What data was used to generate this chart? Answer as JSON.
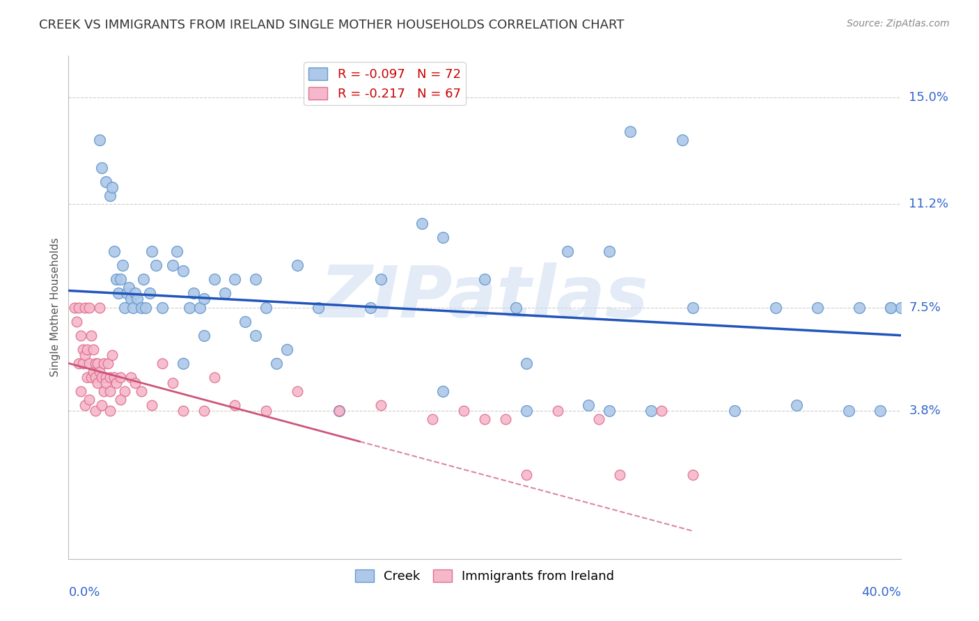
{
  "title": "CREEK VS IMMIGRANTS FROM IRELAND SINGLE MOTHER HOUSEHOLDS CORRELATION CHART",
  "source": "Source: ZipAtlas.com",
  "ylabel": "Single Mother Households",
  "ytick_labels": [
    "3.8%",
    "7.5%",
    "11.2%",
    "15.0%"
  ],
  "ytick_values": [
    3.8,
    7.5,
    11.2,
    15.0
  ],
  "xlim": [
    0.0,
    40.0
  ],
  "ylim": [
    -1.5,
    16.5
  ],
  "creek_R": -0.097,
  "creek_N": 72,
  "ireland_R": -0.217,
  "ireland_N": 67,
  "creek_color": "#adc8e8",
  "creek_edge_color": "#6699cc",
  "ireland_color": "#f5b8cb",
  "ireland_edge_color": "#e07090",
  "creek_line_color": "#2255bb",
  "ireland_line_color": "#cc5577",
  "watermark": "ZIPatlas",
  "watermark_color": "#d0dff0",
  "creek_x": [
    1.5,
    1.6,
    1.8,
    2.0,
    2.1,
    2.2,
    2.3,
    2.4,
    2.5,
    2.6,
    2.7,
    2.8,
    2.9,
    3.0,
    3.1,
    3.2,
    3.3,
    3.5,
    3.6,
    3.7,
    3.9,
    4.0,
    4.2,
    4.5,
    5.0,
    5.2,
    5.5,
    5.8,
    6.0,
    6.3,
    6.5,
    7.0,
    7.5,
    8.0,
    8.5,
    9.0,
    9.5,
    10.0,
    11.0,
    12.0,
    13.0,
    14.5,
    15.0,
    17.0,
    18.0,
    20.0,
    21.5,
    22.0,
    24.0,
    25.0,
    26.0,
    27.0,
    28.0,
    29.5,
    30.0,
    32.0,
    34.0,
    35.0,
    36.0,
    37.5,
    38.0,
    39.0,
    39.5,
    40.0,
    5.5,
    6.5,
    9.0,
    10.5,
    18.0,
    22.0,
    26.0,
    39.5
  ],
  "creek_y": [
    13.5,
    12.5,
    12.0,
    11.5,
    11.8,
    9.5,
    8.5,
    8.0,
    8.5,
    9.0,
    7.5,
    8.0,
    8.2,
    7.8,
    7.5,
    8.0,
    7.8,
    7.5,
    8.5,
    7.5,
    8.0,
    9.5,
    9.0,
    7.5,
    9.0,
    9.5,
    8.8,
    7.5,
    8.0,
    7.5,
    7.8,
    8.5,
    8.0,
    8.5,
    7.0,
    6.5,
    7.5,
    5.5,
    9.0,
    7.5,
    3.8,
    7.5,
    8.5,
    10.5,
    10.0,
    8.5,
    7.5,
    3.8,
    9.5,
    4.0,
    9.5,
    13.8,
    3.8,
    13.5,
    7.5,
    3.8,
    7.5,
    4.0,
    7.5,
    3.8,
    7.5,
    3.8,
    7.5,
    7.5,
    5.5,
    6.5,
    8.5,
    6.0,
    4.5,
    5.5,
    3.8,
    7.5
  ],
  "ireland_x": [
    0.3,
    0.4,
    0.5,
    0.5,
    0.6,
    0.7,
    0.7,
    0.8,
    0.8,
    0.9,
    0.9,
    1.0,
    1.0,
    1.1,
    1.1,
    1.2,
    1.2,
    1.3,
    1.3,
    1.4,
    1.4,
    1.5,
    1.5,
    1.6,
    1.7,
    1.7,
    1.8,
    1.8,
    1.9,
    2.0,
    2.0,
    2.1,
    2.2,
    2.3,
    2.5,
    2.7,
    3.0,
    3.2,
    3.5,
    4.0,
    4.5,
    5.0,
    5.5,
    6.5,
    7.0,
    8.0,
    9.5,
    11.0,
    13.0,
    15.0,
    17.5,
    19.0,
    20.0,
    21.0,
    22.0,
    23.5,
    25.5,
    26.5,
    28.5,
    30.0,
    0.6,
    0.8,
    1.0,
    1.3,
    1.6,
    2.0,
    2.5
  ],
  "ireland_y": [
    7.5,
    7.0,
    7.5,
    5.5,
    6.5,
    6.0,
    5.5,
    7.5,
    5.8,
    6.0,
    5.0,
    7.5,
    5.5,
    6.5,
    5.0,
    6.0,
    5.2,
    5.5,
    5.0,
    5.5,
    4.8,
    7.5,
    5.2,
    5.0,
    5.5,
    4.5,
    5.0,
    4.8,
    5.5,
    5.0,
    4.5,
    5.8,
    5.0,
    4.8,
    5.0,
    4.5,
    5.0,
    4.8,
    4.5,
    4.0,
    5.5,
    4.8,
    3.8,
    3.8,
    5.0,
    4.0,
    3.8,
    4.5,
    3.8,
    4.0,
    3.5,
    3.8,
    3.5,
    3.5,
    1.5,
    3.8,
    3.5,
    1.5,
    3.8,
    1.5,
    4.5,
    4.0,
    4.2,
    3.8,
    4.0,
    3.8,
    4.2
  ]
}
